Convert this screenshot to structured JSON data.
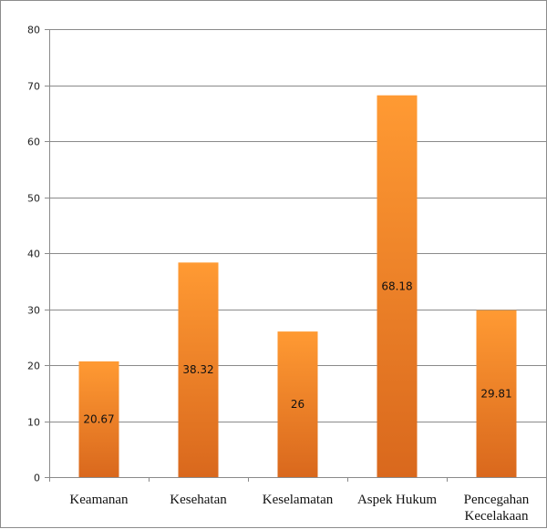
{
  "chart_data": {
    "type": "bar",
    "title": "",
    "xlabel": "",
    "ylabel": "",
    "categories": [
      [
        "Keamanan"
      ],
      [
        "Kesehatan"
      ],
      [
        "Keselamatan"
      ],
      [
        "Aspek Hukum"
      ],
      [
        "Pencegahan",
        "Kecelakaan"
      ]
    ],
    "values": [
      20.67,
      38.32,
      26,
      68.18,
      29.81
    ],
    "data_labels": [
      "20.67",
      "38.32",
      "26",
      "68.18",
      "29.81"
    ],
    "ylim": [
      0,
      80
    ],
    "yticks": [
      0,
      10,
      20,
      30,
      40,
      50,
      60,
      70,
      80
    ],
    "grid": true,
    "legend": "none",
    "bar_color_top": "#ff9a33",
    "bar_color_bottom": "#d9681d"
  }
}
